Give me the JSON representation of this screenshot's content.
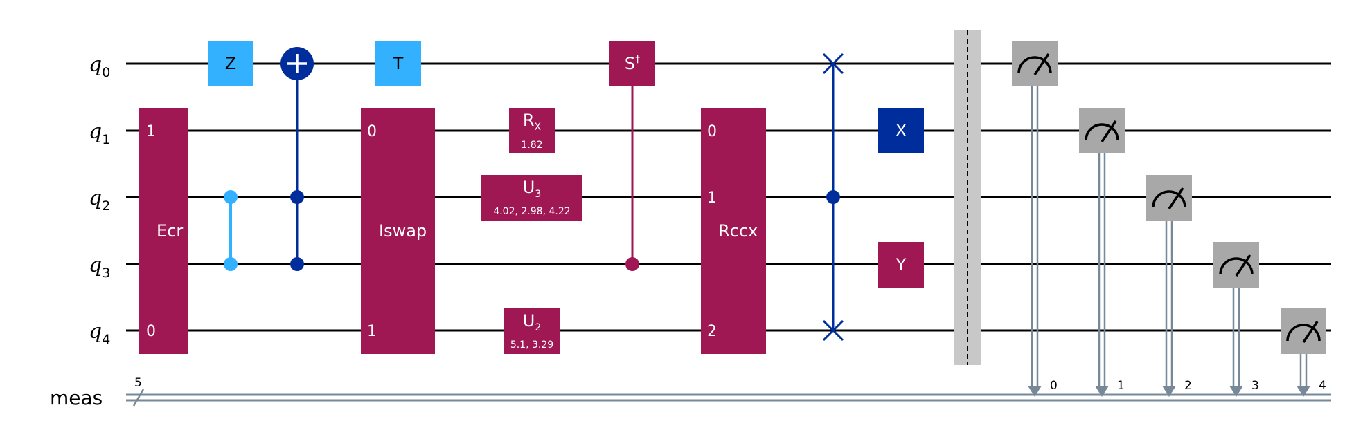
{
  "colors": {
    "wire": "#000000",
    "classical": "#778899",
    "magenta": "#9f1853",
    "lightblue": "#33b1ff",
    "darkblue": "#002d9c",
    "measure": "#a8a8a8",
    "barrier": "#c8c8c8"
  },
  "wires": {
    "q0": {
      "base": "q",
      "sub": "0"
    },
    "q1": {
      "base": "q",
      "sub": "1"
    },
    "q2": {
      "base": "q",
      "sub": "2"
    },
    "q3": {
      "base": "q",
      "sub": "3"
    },
    "q4": {
      "base": "q",
      "sub": "4"
    },
    "meas": {
      "label": "meas",
      "width": "5"
    }
  },
  "gates": {
    "ecr": {
      "label": "Ecr",
      "top_index": "1",
      "bottom_index": "0"
    },
    "z": {
      "label": "Z"
    },
    "t": {
      "label": "T"
    },
    "iswap": {
      "label": "Iswap",
      "top_index": "0",
      "bottom_index": "1"
    },
    "rx": {
      "base": "R",
      "sub": "X",
      "params": "1.82"
    },
    "u3": {
      "base": "U",
      "sub": "3",
      "params": "4.02, 2.98, 4.22"
    },
    "u2": {
      "base": "U",
      "sub": "2",
      "params": "5.1, 3.29"
    },
    "sdg": {
      "base": "S",
      "sup": "†"
    },
    "rccx": {
      "label": "Rccx",
      "idx0": "0",
      "idx1": "1",
      "idx2": "2"
    },
    "x": {
      "label": "X"
    },
    "y": {
      "label": "Y"
    }
  },
  "measurements": {
    "bits": [
      "0",
      "1",
      "2",
      "3",
      "4"
    ]
  }
}
